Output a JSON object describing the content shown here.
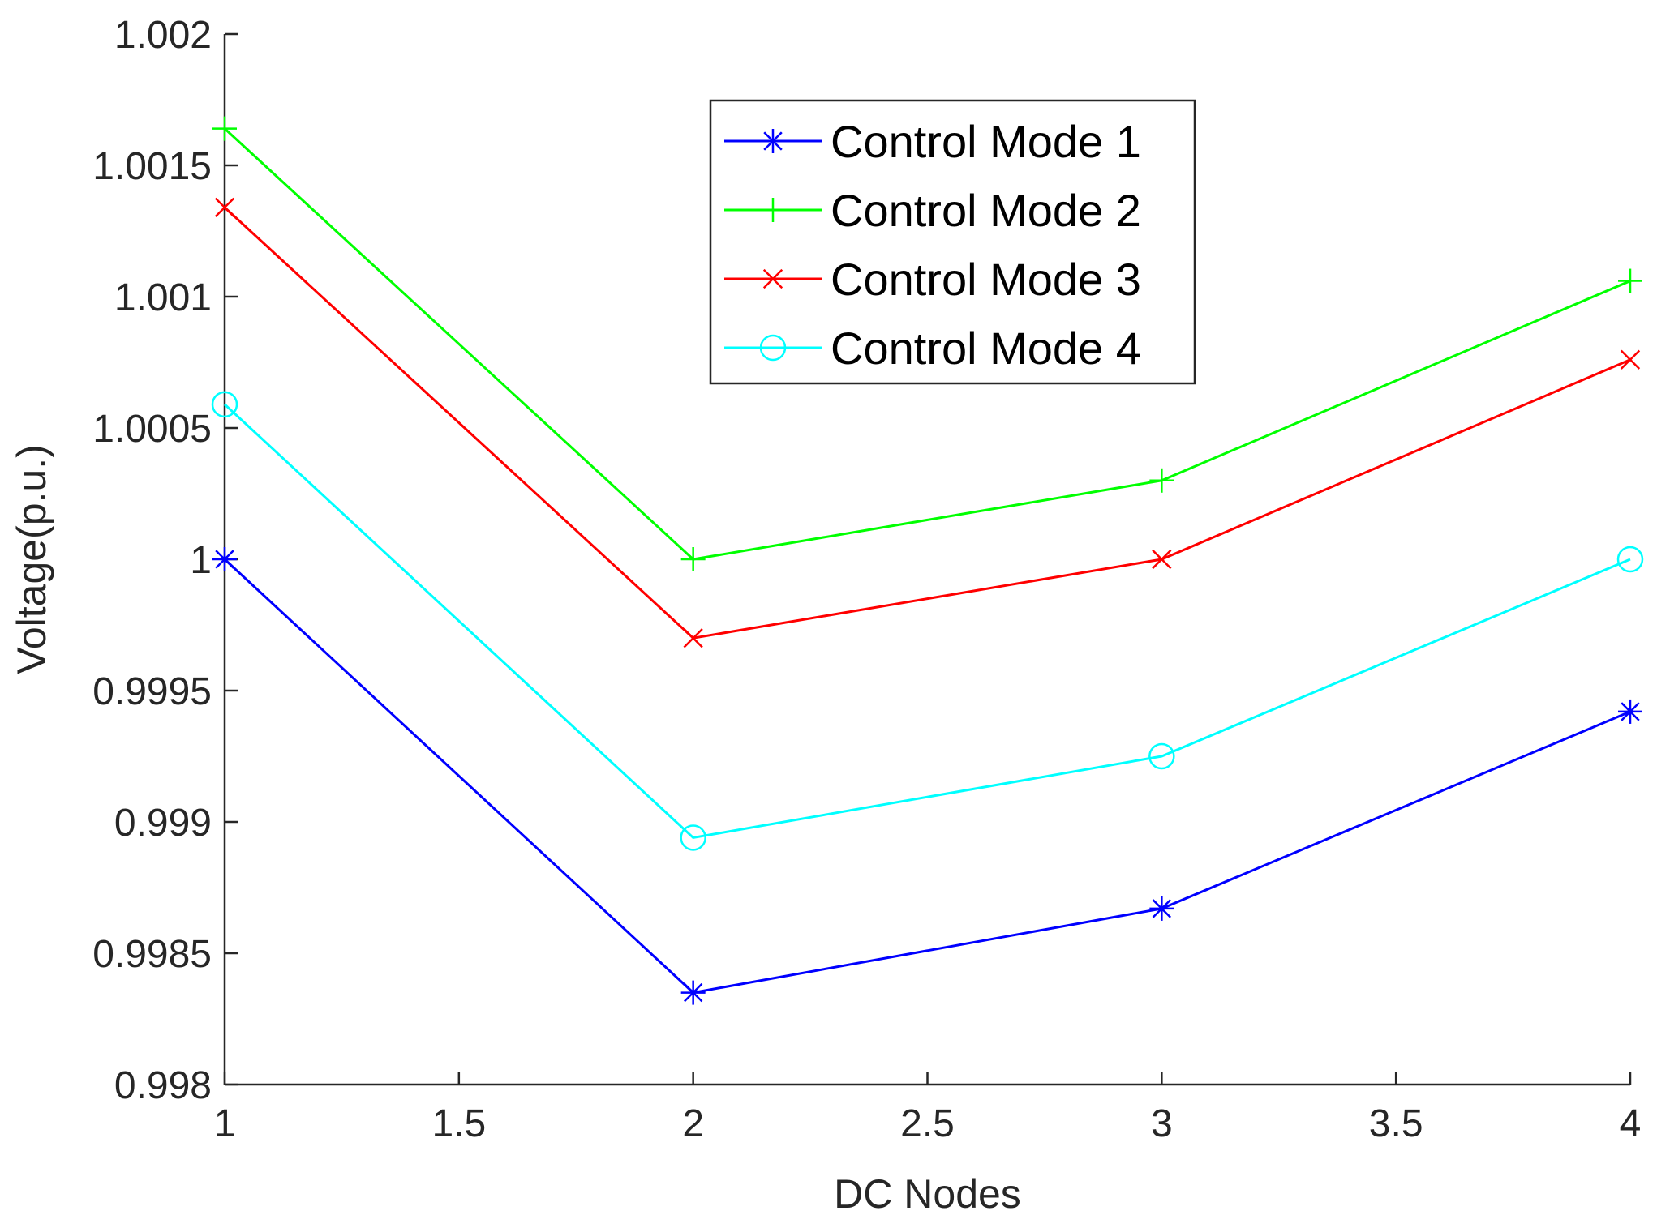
{
  "chart_data": {
    "type": "line",
    "title": "",
    "xlabel": "DC Nodes",
    "ylabel": "Voltage(p.u.)",
    "xlim": [
      1,
      4
    ],
    "ylim": [
      0.998,
      1.002
    ],
    "xticks": [
      1,
      1.5,
      2,
      2.5,
      3,
      3.5,
      4
    ],
    "xtick_labels": [
      "1",
      "1.5",
      "2",
      "2.5",
      "3",
      "3.5",
      "4"
    ],
    "yticks": [
      0.998,
      0.9985,
      0.999,
      0.9995,
      1,
      1.0005,
      1.001,
      1.0015,
      1.002
    ],
    "ytick_labels": [
      "0.998",
      "0.9985",
      "0.999",
      "0.9995",
      "1",
      "1.0005",
      "1.001",
      "1.0015",
      "1.002"
    ],
    "grid": false,
    "legend_position": "top-center",
    "x": [
      1,
      2,
      3,
      4
    ],
    "series": [
      {
        "name": "Control Mode 1",
        "color": "#0000ff",
        "marker": "asterisk",
        "values": [
          1.0,
          0.99835,
          0.99867,
          0.99942
        ]
      },
      {
        "name": "Control Mode 2",
        "color": "#00ff00",
        "marker": "plus",
        "values": [
          1.00164,
          1.0,
          1.0003,
          1.00106
        ]
      },
      {
        "name": "Control Mode 3",
        "color": "#ff0000",
        "marker": "cross",
        "values": [
          1.00134,
          0.9997,
          1.0,
          1.00076
        ]
      },
      {
        "name": "Control Mode 4",
        "color": "#00ffff",
        "marker": "circle",
        "values": [
          1.00059,
          0.99894,
          0.99925,
          1.0
        ]
      }
    ]
  }
}
